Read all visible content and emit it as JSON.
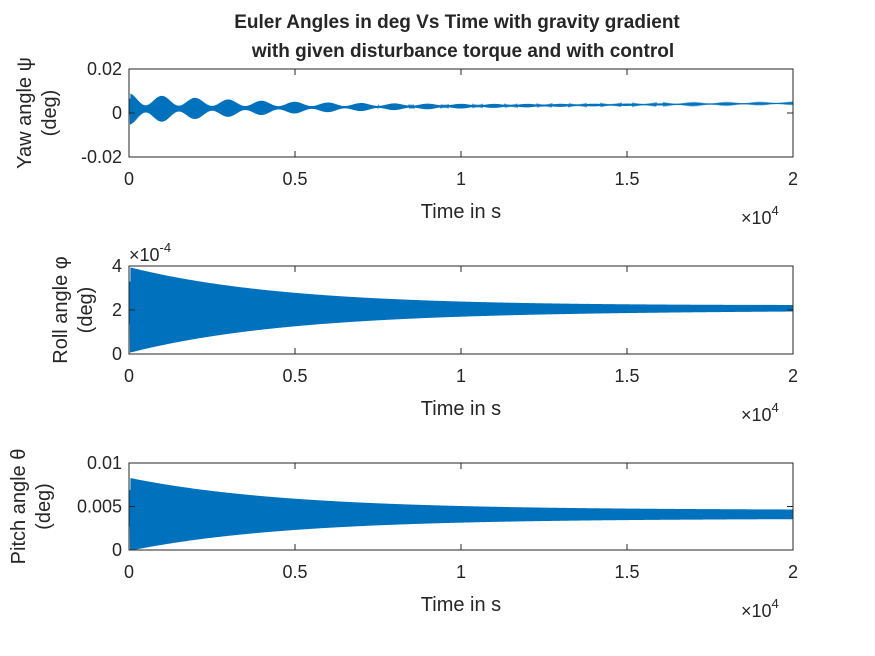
{
  "figure": {
    "title_line1": "Euler Angles in deg Vs Time with gravity gradient",
    "title_line2": "with given disturbance torque and with control"
  },
  "colors": {
    "series": "#0072BD",
    "axes": "#262626",
    "background": "#ffffff"
  },
  "chart_data": [
    {
      "type": "line",
      "ylabel_line1": "Yaw angle ψ",
      "ylabel_line2": "(deg)",
      "xlabel": "Time in s",
      "xlim": [
        0,
        20000
      ],
      "ylim": [
        -0.02,
        0.02
      ],
      "x_ticks": [
        0,
        5000,
        10000,
        15000,
        20000
      ],
      "x_tick_labels": [
        "0",
        "0.5",
        "1",
        "1.5",
        "2"
      ],
      "x_multiplier_base": "×10",
      "x_multiplier_exp": "4",
      "y_ticks": [
        -0.02,
        0,
        0.02
      ],
      "y_tick_labels": [
        "-0.02",
        "0",
        "0.02"
      ],
      "y_multiplier_base": "",
      "y_multiplier_exp": "",
      "grid": false,
      "signal": {
        "mean_start": 0.0018,
        "mean_end": 0.0044,
        "amplitude_start": 0.0072,
        "amplitude_end": 0.0002,
        "envelope_period": 1000,
        "envelope_floor": 0.25
      }
    },
    {
      "type": "line",
      "ylabel_line1": "Roll angle φ",
      "ylabel_line2": "(deg)",
      "xlabel": "Time in s",
      "xlim": [
        0,
        20000
      ],
      "ylim": [
        0,
        0.0004
      ],
      "x_ticks": [
        0,
        5000,
        10000,
        15000,
        20000
      ],
      "x_tick_labels": [
        "0",
        "0.5",
        "1",
        "1.5",
        "2"
      ],
      "x_multiplier_base": "×10",
      "x_multiplier_exp": "4",
      "y_ticks": [
        0,
        0.0002,
        0.0004
      ],
      "y_tick_labels": [
        "0",
        "2",
        "4"
      ],
      "y_multiplier_base": "×10",
      "y_multiplier_exp": "-4",
      "grid": false,
      "signal": {
        "mean_start": 0.0002,
        "mean_end": 0.000208,
        "amplitude_start": 0.000195,
        "amplitude_end": 1.2e-05,
        "envelope_period": 0,
        "envelope_floor": 1
      }
    },
    {
      "type": "line",
      "ylabel_line1": "Pitch angle θ",
      "ylabel_line2": "(deg)",
      "xlabel": "Time in s",
      "xlim": [
        0,
        20000
      ],
      "ylim": [
        0,
        0.01
      ],
      "x_ticks": [
        0,
        5000,
        10000,
        15000,
        20000
      ],
      "x_tick_labels": [
        "0",
        "0.5",
        "1",
        "1.5",
        "2"
      ],
      "x_multiplier_base": "×10",
      "x_multiplier_exp": "4",
      "y_ticks": [
        0,
        0.005,
        0.01
      ],
      "y_tick_labels": [
        "0",
        "0.005",
        "0.01"
      ],
      "y_multiplier_base": "",
      "y_multiplier_exp": "",
      "grid": false,
      "signal": {
        "mean_start": 0.0041,
        "mean_end": 0.0041,
        "amplitude_start": 0.0042,
        "amplitude_end": 0.0005,
        "envelope_period": 0,
        "envelope_floor": 1
      }
    }
  ]
}
